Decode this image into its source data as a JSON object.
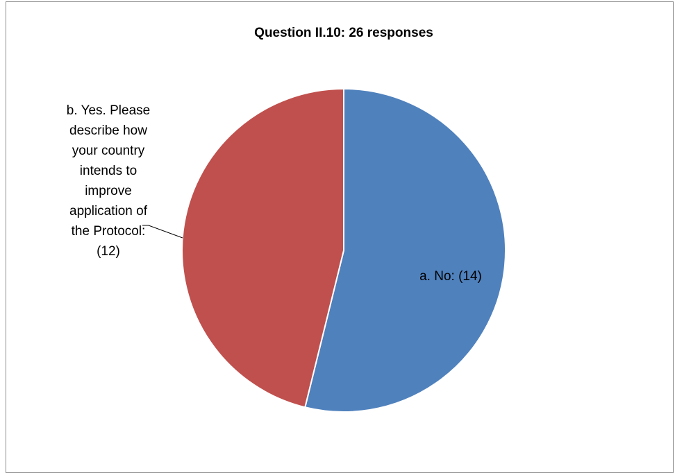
{
  "chart_data": {
    "type": "pie",
    "title": "Question II.10: 26 responses",
    "slices": [
      {
        "label": "a. No: (14)",
        "category": "a. No",
        "value": 14,
        "color": "#4f81bd",
        "label_lines": [
          "a. No: (14)"
        ]
      },
      {
        "label": "b. Yes. Please describe how your country intends to improve application of the Protocol: (12)",
        "category": "b. Yes. Please describe how your country intends to improve application of the Protocol",
        "value": 12,
        "color": "#c0504d",
        "label_lines": [
          "b. Yes. Please",
          "describe how",
          "your country",
          "intends to",
          "improve",
          "application of",
          "the Protocol:",
          "(12)"
        ]
      }
    ],
    "start_angle": "12 o'clock",
    "direction": "clockwise",
    "legend": "none"
  }
}
